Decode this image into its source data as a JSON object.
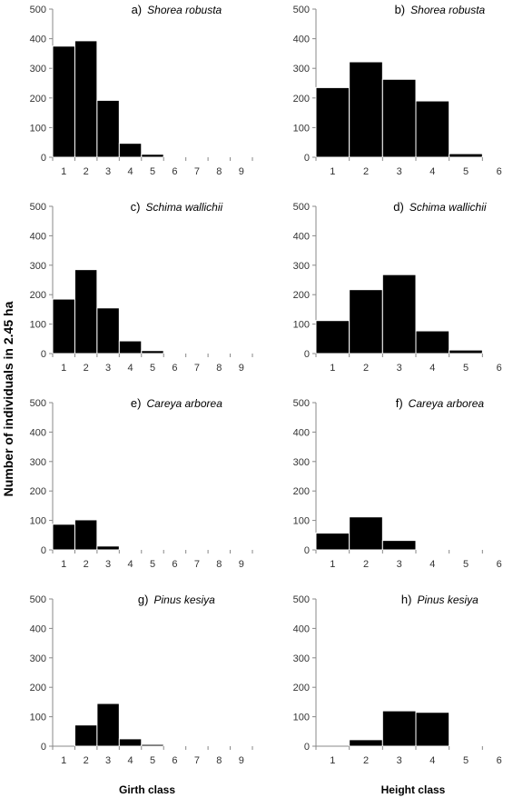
{
  "figure": {
    "ylabel": "Number of individuals in 2.45 ha",
    "xlabel_left": "Girth class",
    "xlabel_right": "Height class",
    "bar_color": "#000000",
    "bar_edge_color": "#ffffff"
  },
  "chart_data": [
    {
      "type": "bar",
      "letter": "a)",
      "species": "Shorea robusta",
      "categories": [
        "1",
        "2",
        "3",
        "4",
        "5",
        "6",
        "7",
        "8",
        "9"
      ],
      "values": [
        375,
        393,
        192,
        47,
        10,
        2,
        1,
        1,
        1
      ],
      "ylim": [
        0,
        500
      ],
      "yticks": [
        0,
        100,
        200,
        300,
        400,
        500
      ]
    },
    {
      "type": "bar",
      "letter": "b)",
      "species": "Shorea robusta",
      "categories": [
        "1",
        "2",
        "3",
        "4",
        "5",
        "6"
      ],
      "values": [
        235,
        322,
        263,
        190,
        12,
        2
      ],
      "ylim": [
        0,
        500
      ],
      "yticks": [
        0,
        100,
        200,
        300,
        400,
        500
      ]
    },
    {
      "type": "bar",
      "letter": "c)",
      "species": "Schima wallichii",
      "categories": [
        "1",
        "2",
        "3",
        "4",
        "5",
        "6",
        "7",
        "8",
        "9"
      ],
      "values": [
        185,
        285,
        155,
        43,
        10,
        2,
        1,
        1,
        1
      ],
      "ylim": [
        0,
        500
      ],
      "yticks": [
        0,
        100,
        200,
        300,
        400,
        500
      ]
    },
    {
      "type": "bar",
      "letter": "d)",
      "species": "Schima wallichii",
      "categories": [
        "1",
        "2",
        "3",
        "4",
        "5",
        "6"
      ],
      "values": [
        112,
        217,
        268,
        77,
        12,
        2
      ],
      "ylim": [
        0,
        500
      ],
      "yticks": [
        0,
        100,
        200,
        300,
        400,
        500
      ]
    },
    {
      "type": "bar",
      "letter": "e)",
      "species": "Careya arborea",
      "categories": [
        "1",
        "2",
        "3",
        "4",
        "5",
        "6",
        "7",
        "8",
        "9"
      ],
      "values": [
        87,
        102,
        13,
        2,
        1,
        1,
        1,
        1,
        1
      ],
      "ylim": [
        0,
        500
      ],
      "yticks": [
        0,
        100,
        200,
        300,
        400,
        500
      ]
    },
    {
      "type": "bar",
      "letter": "f)",
      "species": "Careya arborea",
      "categories": [
        "1",
        "2",
        "3",
        "4",
        "5",
        "6"
      ],
      "values": [
        57,
        112,
        32,
        2,
        1,
        1
      ],
      "ylim": [
        0,
        500
      ],
      "yticks": [
        0,
        100,
        200,
        300,
        400,
        500
      ]
    },
    {
      "type": "bar",
      "letter": "g)",
      "species": "Pinus kesiya",
      "categories": [
        "1",
        "2",
        "3",
        "4",
        "5",
        "6",
        "7",
        "8",
        "9"
      ],
      "values": [
        0,
        72,
        145,
        25,
        6,
        1,
        1,
        1,
        1
      ],
      "ylim": [
        0,
        500
      ],
      "yticks": [
        0,
        100,
        200,
        300,
        400,
        500
      ]
    },
    {
      "type": "bar",
      "letter": "h)",
      "species": "Pinus kesiya",
      "categories": [
        "1",
        "2",
        "3",
        "4",
        "5",
        "6"
      ],
      "values": [
        0,
        22,
        120,
        115,
        1,
        1
      ],
      "ylim": [
        0,
        500
      ],
      "yticks": [
        0,
        100,
        200,
        300,
        400,
        500
      ]
    }
  ]
}
